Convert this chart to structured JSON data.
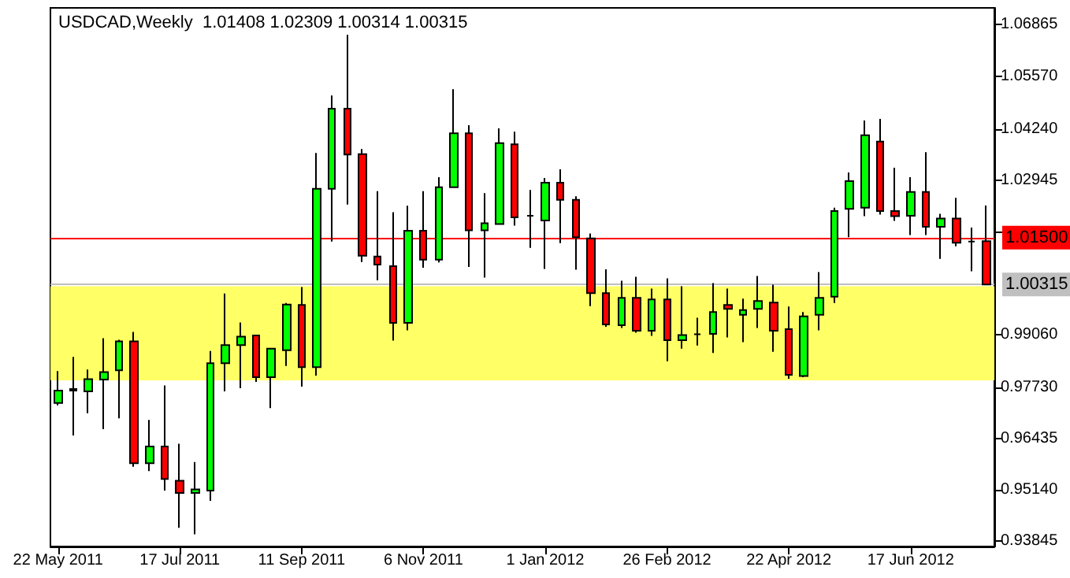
{
  "chart_data": {
    "type": "candlestick",
    "title": "USDCAD,Weekly  1.01408 1.02309 1.00314 1.00315",
    "categories": [
      "22 May 2011",
      null,
      null,
      null,
      null,
      null,
      null,
      null,
      "17 Jul 2011",
      null,
      null,
      null,
      null,
      null,
      null,
      null,
      "11 Sep 2011",
      null,
      null,
      null,
      null,
      null,
      null,
      null,
      "6 Nov 2011",
      null,
      null,
      null,
      null,
      null,
      null,
      null,
      "1 Jan 2012",
      null,
      null,
      null,
      null,
      null,
      null,
      null,
      "26 Feb 2012",
      null,
      null,
      null,
      null,
      null,
      null,
      null,
      "22 Apr 2012",
      null,
      null,
      null,
      null,
      null,
      null,
      null,
      "17 Jun 2012",
      null,
      null,
      null,
      null,
      null
    ],
    "ohlc": [
      [
        0.9733,
        0.9813,
        0.9727,
        0.9764
      ],
      [
        0.9764,
        0.9849,
        0.9651,
        0.9768
      ],
      [
        0.9762,
        0.9817,
        0.9707,
        0.9793
      ],
      [
        0.9792,
        0.9896,
        0.9667,
        0.9811
      ],
      [
        0.9815,
        0.9892,
        0.9694,
        0.9888
      ],
      [
        0.9888,
        0.9912,
        0.9572,
        0.9581
      ],
      [
        0.9581,
        0.969,
        0.9561,
        0.9623
      ],
      [
        0.9623,
        0.9777,
        0.9512,
        0.9541
      ],
      [
        0.9537,
        0.963,
        0.9418,
        0.9506
      ],
      [
        0.9506,
        0.9584,
        0.9402,
        0.9515
      ],
      [
        0.9512,
        0.9864,
        0.9486,
        0.9833
      ],
      [
        0.9833,
        1.0009,
        0.9762,
        0.9879
      ],
      [
        0.9879,
        0.9936,
        0.977,
        0.99
      ],
      [
        0.9903,
        0.9903,
        0.9786,
        0.9798
      ],
      [
        0.9798,
        0.9872,
        0.972,
        0.987
      ],
      [
        0.9866,
        0.9985,
        0.9826,
        0.9981
      ],
      [
        0.998,
        1.0025,
        0.9774,
        0.9823
      ],
      [
        0.9823,
        1.0363,
        0.9802,
        1.0273
      ],
      [
        1.0273,
        1.0508,
        1.014,
        1.0475
      ],
      [
        1.0475,
        1.0661,
        1.0233,
        1.0359
      ],
      [
        1.036,
        1.0373,
        1.0088,
        1.0104
      ],
      [
        1.0102,
        1.0267,
        1.0042,
        1.0082
      ],
      [
        1.0078,
        1.0214,
        0.989,
        0.9935
      ],
      [
        0.9935,
        1.023,
        0.9916,
        1.0167
      ],
      [
        1.0167,
        1.0267,
        1.0074,
        1.0094
      ],
      [
        1.0094,
        1.0302,
        1.0087,
        1.0277
      ],
      [
        1.0277,
        1.0524,
        1.0277,
        1.0413
      ],
      [
        1.0413,
        1.0433,
        1.0076,
        1.0168
      ],
      [
        1.0168,
        1.0262,
        1.0049,
        1.0186
      ],
      [
        1.0184,
        1.0425,
        1.0184,
        1.0388
      ],
      [
        1.0385,
        1.0417,
        1.018,
        1.0201
      ],
      [
        1.0205,
        1.027,
        1.0124,
        1.0205
      ],
      [
        1.0193,
        1.03,
        1.0071,
        1.0288
      ],
      [
        1.0288,
        1.0322,
        1.0136,
        1.0245
      ],
      [
        1.0245,
        1.0254,
        1.0069,
        1.0151
      ],
      [
        1.0148,
        1.016,
        0.9977,
        1.001
      ],
      [
        1.001,
        1.007,
        0.9925,
        0.9931
      ],
      [
        0.9929,
        1.0041,
        0.9922,
        0.9998
      ],
      [
        0.9998,
        1.0051,
        0.991,
        0.9915
      ],
      [
        0.9915,
        1.0021,
        0.9902,
        0.9994
      ],
      [
        0.9994,
        1.0047,
        0.9838,
        0.9891
      ],
      [
        0.9891,
        1.0027,
        0.987,
        0.9904
      ],
      [
        0.9906,
        0.9948,
        0.9878,
        0.9906
      ],
      [
        0.9907,
        1.0035,
        0.9859,
        0.9962
      ],
      [
        0.998,
        1.0021,
        0.9898,
        0.997
      ],
      [
        0.9955,
        0.9996,
        0.9886,
        0.9967
      ],
      [
        0.997,
        1.0053,
        0.9922,
        0.999
      ],
      [
        0.9986,
        1.0031,
        0.9862,
        0.9915
      ],
      [
        0.9919,
        0.9976,
        0.9794,
        0.9804
      ],
      [
        0.9801,
        0.9962,
        0.9798,
        0.9951
      ],
      [
        0.9955,
        1.0063,
        0.9916,
        0.9998
      ],
      [
        1.0001,
        1.0225,
        0.9985,
        1.0217
      ],
      [
        1.0222,
        1.0314,
        1.0151,
        1.0292
      ],
      [
        1.0225,
        1.0445,
        1.0204,
        1.0408
      ],
      [
        1.0392,
        1.0449,
        1.0208,
        1.0217
      ],
      [
        1.0217,
        1.0326,
        1.0192,
        1.0204
      ],
      [
        1.0205,
        1.0302,
        1.0156,
        1.0265
      ],
      [
        1.0265,
        1.0365,
        1.0156,
        1.0177
      ],
      [
        1.0177,
        1.021,
        1.0096,
        1.0198
      ],
      [
        1.0198,
        1.025,
        1.0128,
        1.0137
      ],
      [
        1.014,
        1.0175,
        1.0065,
        1.014
      ],
      [
        1.01408,
        1.02309,
        1.00314,
        1.00315
      ]
    ],
    "colors": [
      "#00ff00",
      "#00ff00",
      "#00ff00",
      "#00ff00",
      "#00ff00",
      "#ff0000",
      "#00ff00",
      "#ff0000",
      "#ff0000",
      "#00ff00",
      "#00ff00",
      "#00ff00",
      "#00ff00",
      "#ff0000",
      "#00ff00",
      "#00ff00",
      "#ff0000",
      "#00ff00",
      "#00ff00",
      "#ff0000",
      "#ff0000",
      "#ff0000",
      "#ff0000",
      "#00ff00",
      "#ff0000",
      "#00ff00",
      "#00ff00",
      "#ff0000",
      "#00ff00",
      "#00ff00",
      "#ff0000",
      "#000000",
      "#00ff00",
      "#ff0000",
      "#ff0000",
      "#ff0000",
      "#ff0000",
      "#00ff00",
      "#ff0000",
      "#00ff00",
      "#ff0000",
      "#00ff00",
      "#000000",
      "#00ff00",
      "#ff0000",
      "#00ff00",
      "#00ff00",
      "#ff0000",
      "#ff0000",
      "#00ff00",
      "#00ff00",
      "#00ff00",
      "#00ff00",
      "#00ff00",
      "#ff0000",
      "#ff0000",
      "#00ff00",
      "#ff0000",
      "#00ff00",
      "#ff0000",
      "#000000",
      "#ff0000"
    ],
    "ylim": [
      0.9371,
      1.0729
    ],
    "yticks": [
      {
        "value": 0.93845,
        "label": "0.93845"
      },
      {
        "value": 0.9514,
        "label": "0.95140"
      },
      {
        "value": 0.96435,
        "label": "0.96435"
      },
      {
        "value": 0.9773,
        "label": "0.97730"
      },
      {
        "value": 0.9906,
        "label": "0.99060"
      },
      {
        "value": 1.0165,
        "label": null
      },
      {
        "value": 1.02945,
        "label": "1.02945"
      },
      {
        "value": 1.0424,
        "label": "1.04240"
      },
      {
        "value": 1.0557,
        "label": "1.05570"
      },
      {
        "value": 1.06865,
        "label": "1.06865"
      }
    ],
    "ref_lines": [
      {
        "axis": "y",
        "value": 1.015,
        "label": "1.01500",
        "color": "#ff0000"
      },
      {
        "axis": "y",
        "value": 1.00315,
        "label": "1.00315",
        "color": "#c0c0c0"
      }
    ],
    "bands": [
      {
        "axis": "y",
        "from": 0.979,
        "to": 1.0027,
        "color": "#ffff66"
      }
    ],
    "grid": false
  }
}
